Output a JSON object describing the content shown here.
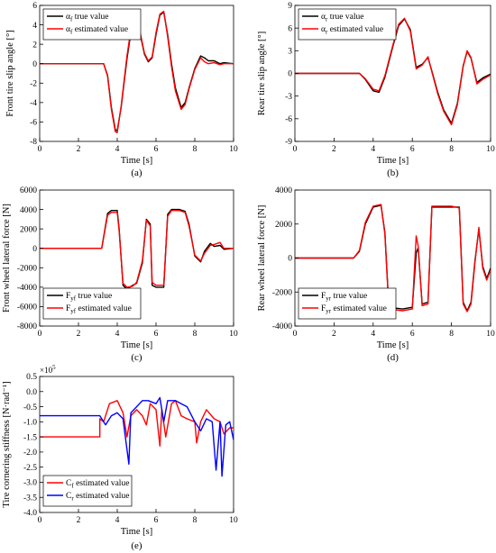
{
  "figure": {
    "panels": [
      {
        "id": "a",
        "caption": "(a)",
        "legend": [
          {
            "pre": "α",
            "sub": "f",
            "post": " true value",
            "color": "#000000"
          },
          {
            "pre": "α",
            "sub": "f",
            "post": " estimated value",
            "color": "#ff0000"
          }
        ]
      },
      {
        "id": "b",
        "caption": "(b)",
        "legend": [
          {
            "pre": "α",
            "sub": "r",
            "post": " true value",
            "color": "#000000"
          },
          {
            "pre": "α",
            "sub": "r",
            "post": " estimated value",
            "color": "#ff0000"
          }
        ]
      },
      {
        "id": "c",
        "caption": "(c)",
        "legend": [
          {
            "pre": "F",
            "sub": "yf",
            "post": " true value",
            "color": "#000000"
          },
          {
            "pre": "F",
            "sub": "yf",
            "post": " estimated value",
            "color": "#ff0000"
          }
        ]
      },
      {
        "id": "d",
        "caption": "(d)",
        "legend": [
          {
            "pre": "F",
            "sub": "yr",
            "post": " true value",
            "color": "#000000"
          },
          {
            "pre": "F",
            "sub": "yr",
            "post": " estimated value",
            "color": "#ff0000"
          }
        ]
      },
      {
        "id": "e",
        "caption": "(e)",
        "multiplier": "×10",
        "multiplier_exp": "5",
        "legend": [
          {
            "pre": "C",
            "sub": "f",
            "post": " estimated value",
            "color": "#ff0000"
          },
          {
            "pre": "C",
            "sub": "r",
            "post": " estimated value",
            "color": "#0000ff"
          }
        ]
      }
    ]
  },
  "chart_data": [
    {
      "id": "a",
      "type": "line",
      "xlabel": "Time [s]",
      "ylabel": "Front tire slip angle [°]",
      "xlim": [
        0,
        10
      ],
      "ylim": [
        -8,
        6
      ],
      "xticks": [
        0,
        2,
        4,
        6,
        8,
        10
      ],
      "yticks": [
        6,
        4,
        2,
        0,
        -2,
        -4,
        -6,
        -8
      ],
      "grid": false,
      "legend_position": "top-left",
      "series": [
        {
          "name": "αf true value",
          "color": "#000000",
          "x": [
            0,
            3.3,
            3.5,
            3.7,
            3.9,
            4.0,
            4.2,
            4.5,
            4.7,
            4.9,
            5.1,
            5.4,
            5.6,
            5.8,
            6.0,
            6.2,
            6.4,
            6.6,
            6.8,
            7.0,
            7.3,
            7.5,
            7.7,
            8.0,
            8.3,
            8.5,
            8.7,
            9.0,
            9.3,
            9.5,
            10
          ],
          "y": [
            0,
            0,
            -1.2,
            -4.5,
            -6.8,
            -6.9,
            -4.5,
            0.5,
            3.2,
            4.2,
            3.8,
            1.0,
            0.2,
            0.6,
            3.0,
            5.0,
            5.3,
            3.0,
            0,
            -2.5,
            -4.5,
            -4.0,
            -2.5,
            -0.5,
            0.8,
            0.6,
            0.3,
            0.3,
            0.0,
            0.1,
            0
          ]
        },
        {
          "name": "αf estimated value",
          "color": "#ff0000",
          "x": [
            0,
            3.3,
            3.5,
            3.7,
            3.9,
            4.0,
            4.2,
            4.5,
            4.7,
            4.9,
            5.1,
            5.4,
            5.6,
            5.8,
            6.0,
            6.2,
            6.4,
            6.6,
            6.8,
            7.0,
            7.3,
            7.5,
            7.7,
            8.0,
            8.3,
            8.5,
            8.7,
            9.0,
            9.3,
            9.5,
            10
          ],
          "y": [
            0,
            0,
            -1.3,
            -4.7,
            -7.0,
            -7.1,
            -4.4,
            0.8,
            3.5,
            4.4,
            4.0,
            1.1,
            0.3,
            0.7,
            3.2,
            5.1,
            5.4,
            2.8,
            -0.3,
            -2.8,
            -4.7,
            -4.2,
            -2.6,
            -0.6,
            0.6,
            0.2,
            0.0,
            0.1,
            -0.1,
            0.0,
            0
          ]
        }
      ]
    },
    {
      "id": "b",
      "type": "line",
      "xlabel": "Time [s]",
      "ylabel": "Rear tire slip angle [°]",
      "xlim": [
        0,
        10
      ],
      "ylim": [
        -9,
        9
      ],
      "xticks": [
        0,
        2,
        4,
        6,
        8,
        10
      ],
      "yticks": [
        9,
        6,
        3,
        0,
        -3,
        -6,
        -9
      ],
      "grid": false,
      "legend_position": "top-left",
      "series": [
        {
          "name": "αr true value",
          "color": "#000000",
          "x": [
            0,
            3.3,
            3.6,
            4.0,
            4.3,
            4.6,
            5.0,
            5.3,
            5.6,
            5.9,
            6.2,
            6.5,
            6.8,
            7.0,
            7.3,
            7.6,
            8.0,
            8.3,
            8.6,
            8.8,
            9.0,
            9.3,
            9.6,
            10
          ],
          "y": [
            0,
            0,
            -0.8,
            -2.3,
            -2.5,
            -0.5,
            3.5,
            6.3,
            7.2,
            5.8,
            0.8,
            1.2,
            2.1,
            0.3,
            -2.5,
            -4.8,
            -6.6,
            -4.0,
            1.0,
            2.9,
            2.0,
            -1.2,
            -0.6,
            -0.1
          ]
        },
        {
          "name": "αr estimated value",
          "color": "#ff0000",
          "x": [
            0,
            3.3,
            3.6,
            4.0,
            4.3,
            4.6,
            5.0,
            5.3,
            5.6,
            5.9,
            6.2,
            6.5,
            6.8,
            7.0,
            7.3,
            7.6,
            8.0,
            8.3,
            8.6,
            8.8,
            9.0,
            9.3,
            9.6,
            10
          ],
          "y": [
            0,
            0,
            -0.7,
            -2.1,
            -2.3,
            -0.3,
            3.7,
            6.5,
            7.3,
            5.6,
            0.6,
            1.1,
            2.2,
            0.2,
            -2.7,
            -5.0,
            -6.8,
            -4.2,
            0.9,
            3.0,
            2.1,
            -1.4,
            -0.8,
            -0.2
          ]
        }
      ]
    },
    {
      "id": "c",
      "type": "line",
      "xlabel": "Time [s]",
      "ylabel": "Front wheel lateral force [N]",
      "xlim": [
        0,
        10
      ],
      "ylim": [
        -8000,
        6000
      ],
      "xticks": [
        0,
        2,
        4,
        6,
        8,
        10
      ],
      "yticks": [
        6000,
        4000,
        2000,
        0,
        -2000,
        -4000,
        -6000,
        -8000
      ],
      "grid": false,
      "legend_position": "bottom-left",
      "series": [
        {
          "name": "Fyf true value",
          "color": "#000000",
          "x": [
            0,
            3.2,
            3.5,
            3.7,
            4.0,
            4.1,
            4.3,
            4.5,
            4.8,
            5.0,
            5.3,
            5.5,
            5.7,
            5.8,
            6.0,
            6.4,
            6.6,
            6.8,
            7.2,
            7.5,
            7.7,
            8.0,
            8.3,
            8.5,
            8.8,
            9.0,
            9.3,
            9.5,
            10
          ],
          "y": [
            0,
            0,
            3600,
            3900,
            3900,
            2000,
            -3800,
            -4200,
            -3800,
            -3600,
            -1500,
            3000,
            2500,
            -3800,
            -4000,
            -4000,
            3500,
            4000,
            4000,
            3800,
            2500,
            -800,
            -1400,
            -300,
            500,
            200,
            300,
            -100,
            0
          ]
        },
        {
          "name": "Fyf estimated value",
          "color": "#ff0000",
          "x": [
            0,
            3.2,
            3.5,
            3.7,
            4.0,
            4.1,
            4.3,
            4.5,
            4.8,
            5.0,
            5.3,
            5.5,
            5.7,
            5.8,
            6.0,
            6.4,
            6.6,
            6.8,
            7.2,
            7.5,
            7.7,
            8.0,
            8.3,
            8.5,
            8.8,
            9.0,
            9.3,
            9.5,
            10
          ],
          "y": [
            0,
            0,
            3400,
            3700,
            3700,
            1800,
            -3600,
            -4000,
            -3900,
            -3500,
            -1300,
            2900,
            2300,
            -3500,
            -3800,
            -3800,
            3300,
            3900,
            3900,
            3700,
            2300,
            -700,
            -1300,
            -500,
            300,
            400,
            600,
            0,
            0
          ]
        }
      ]
    },
    {
      "id": "d",
      "type": "line",
      "xlabel": "Time [s]",
      "ylabel": "Rear wheel lateral force [N]",
      "xlim": [
        0,
        10
      ],
      "ylim": [
        -4000,
        4000
      ],
      "xticks": [
        0,
        2,
        4,
        6,
        8,
        10
      ],
      "yticks": [
        4000,
        2000,
        0,
        -2000,
        -4000
      ],
      "grid": false,
      "legend_position": "bottom-left",
      "series": [
        {
          "name": "Fyr true value",
          "color": "#000000",
          "x": [
            0,
            3.0,
            3.3,
            3.6,
            4.0,
            4.4,
            4.6,
            4.8,
            5.5,
            6.0,
            6.2,
            6.3,
            6.5,
            6.8,
            7.0,
            7.5,
            8.0,
            8.4,
            8.6,
            8.8,
            9.0,
            9.2,
            9.4,
            9.6,
            9.8,
            10
          ],
          "y": [
            0,
            0,
            400,
            2000,
            3000,
            3100,
            1500,
            -2900,
            -3000,
            -2900,
            300,
            600,
            -2700,
            -2600,
            3000,
            3000,
            3000,
            3000,
            -2600,
            -3100,
            -2600,
            -200,
            1700,
            -500,
            -1200,
            -600
          ]
        },
        {
          "name": "Fyr estimated value",
          "color": "#ff0000",
          "x": [
            0,
            3.0,
            3.3,
            3.6,
            4.0,
            4.4,
            4.6,
            4.8,
            5.5,
            6.0,
            6.2,
            6.3,
            6.5,
            6.8,
            7.0,
            7.5,
            8.0,
            8.4,
            8.6,
            8.8,
            9.0,
            9.2,
            9.4,
            9.6,
            9.8,
            10
          ],
          "y": [
            0,
            0,
            450,
            2100,
            3050,
            3150,
            1400,
            -3000,
            -3100,
            -3000,
            1300,
            700,
            -2800,
            -2700,
            3050,
            3050,
            3050,
            2950,
            -2700,
            -3150,
            -2700,
            -300,
            1800,
            -600,
            -1300,
            -700
          ]
        }
      ]
    },
    {
      "id": "e",
      "type": "line",
      "xlabel": "Time [s]",
      "ylabel": "Tire cornering stiffness [N·rad⁻¹]",
      "xlim": [
        0,
        10
      ],
      "ylim": [
        -4.0,
        0.5
      ],
      "xticks": [
        0,
        2,
        4,
        6,
        8,
        10
      ],
      "yticks": [
        0.5,
        0.0,
        -0.5,
        -1.0,
        -1.5,
        -2.0,
        -2.5,
        -3.0,
        -3.5,
        -4.0
      ],
      "ytick_labels": [
        "0.5",
        "0.0",
        "-0.5",
        "-1.0",
        "-1.5",
        "-2.0",
        "-2.5",
        "-3.0",
        "-3.5",
        "-4.0"
      ],
      "y_scale_factor": "×10^5",
      "grid": false,
      "legend_position": "bottom-left",
      "series": [
        {
          "name": "Cf estimated value",
          "color": "#ff0000",
          "x": [
            0,
            3.1,
            3.1,
            3.3,
            3.6,
            4.0,
            4.3,
            4.5,
            4.7,
            5.0,
            5.3,
            5.5,
            5.7,
            6.0,
            6.2,
            6.3,
            6.5,
            6.8,
            7.0,
            7.3,
            7.6,
            8.0,
            8.1,
            8.3,
            8.6,
            9.0,
            9.3,
            9.5,
            9.8,
            10
          ],
          "y": [
            -1.5,
            -1.5,
            -0.9,
            -1.0,
            -0.4,
            -0.3,
            -0.7,
            -1.5,
            -0.8,
            -0.6,
            -0.8,
            -1.1,
            -0.4,
            -0.6,
            -1.8,
            -0.6,
            -1.5,
            -0.4,
            -0.3,
            -0.8,
            -0.9,
            -1.0,
            -1.7,
            -1.0,
            -0.6,
            -0.9,
            -1.0,
            -1.4,
            -1.2,
            -1.2
          ]
        },
        {
          "name": "Cr estimated value",
          "color": "#0000ff",
          "x": [
            0,
            3.1,
            3.2,
            3.4,
            3.7,
            4.0,
            4.3,
            4.6,
            4.7,
            5.0,
            5.3,
            5.6,
            6.0,
            6.2,
            6.4,
            6.6,
            6.8,
            7.0,
            7.3,
            7.6,
            8.0,
            8.3,
            8.6,
            8.9,
            9.1,
            9.3,
            9.4,
            9.6,
            9.8,
            10
          ],
          "y": [
            -0.8,
            -0.8,
            -0.9,
            -1.1,
            -0.8,
            -0.7,
            -0.9,
            -2.4,
            -0.7,
            -0.5,
            -0.3,
            -0.3,
            -0.4,
            -0.2,
            -1.0,
            -0.3,
            -0.3,
            -0.3,
            -0.4,
            -0.5,
            -1.0,
            -1.3,
            -0.9,
            -1.0,
            -2.6,
            -1.0,
            -2.8,
            -1.1,
            -1.0,
            -1.6
          ]
        }
      ]
    }
  ]
}
